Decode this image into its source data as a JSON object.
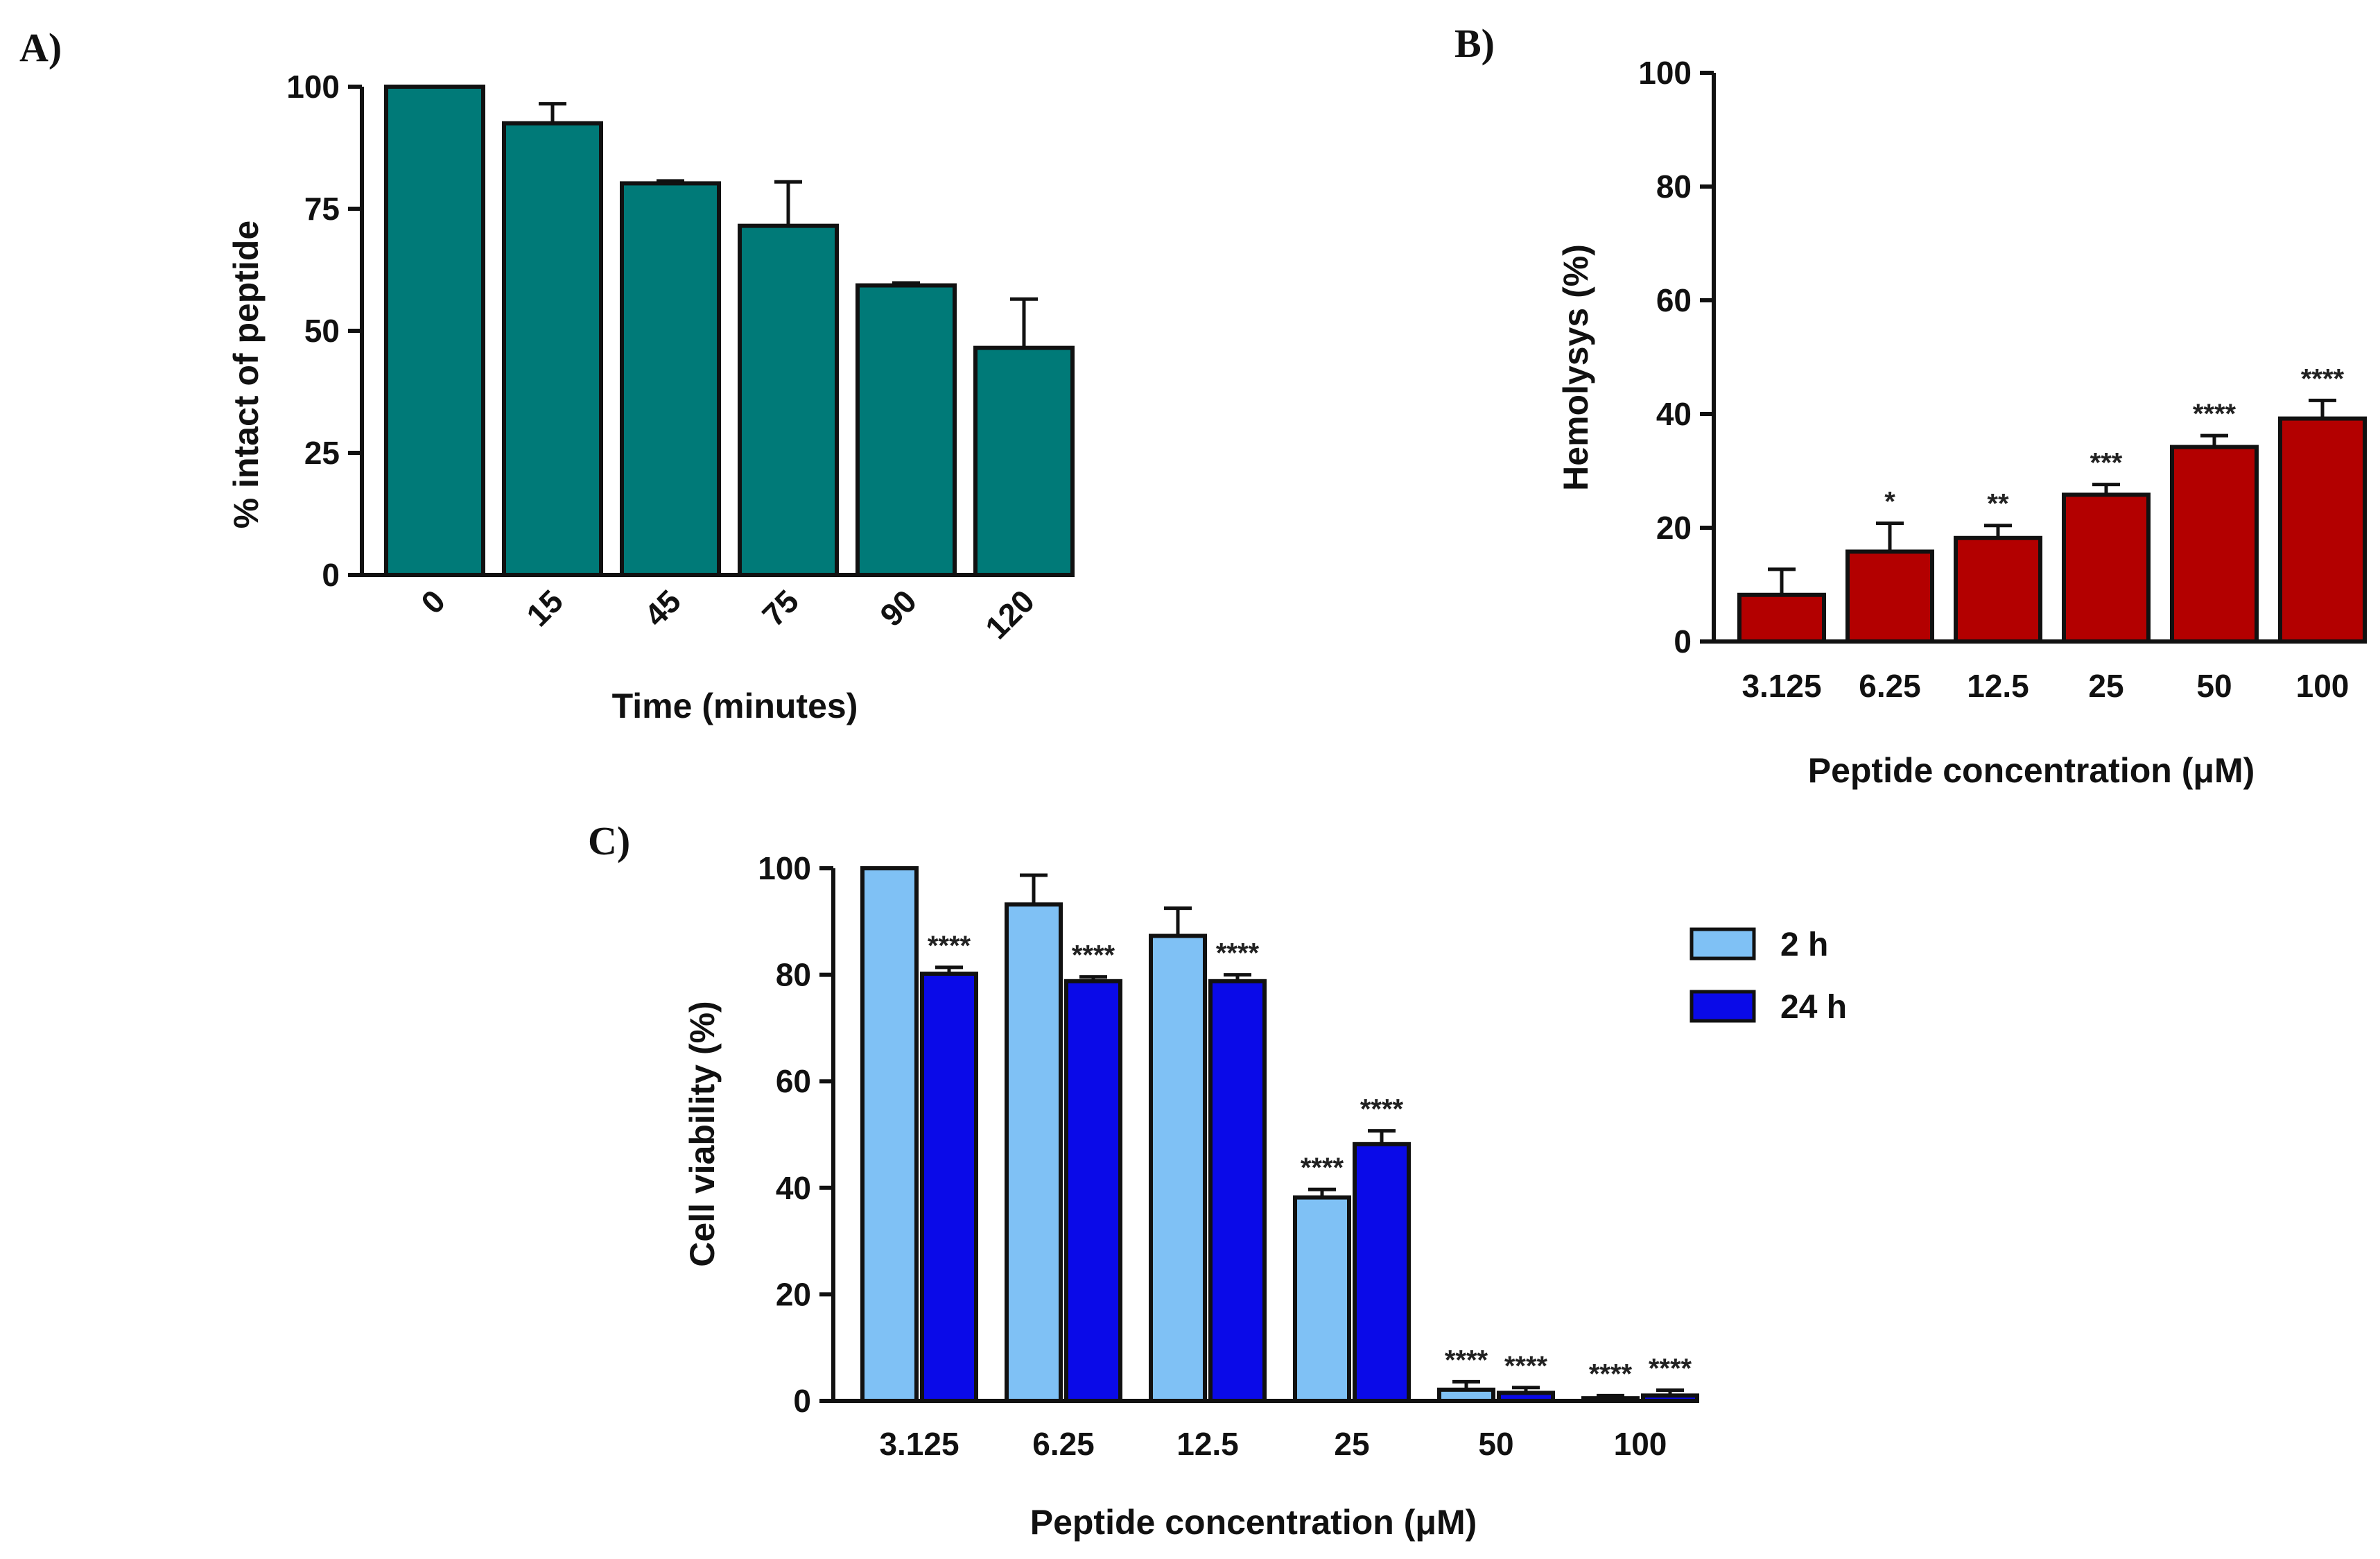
{
  "colors": {
    "teal": "#007A78",
    "red": "#B30000",
    "light_blue": "#7FC1F5",
    "blue": "#0A0AE8",
    "ink": "#111111"
  },
  "chart_data": [
    {
      "id": "A",
      "panel_label": "A)",
      "type": "bar",
      "title": "",
      "xlabel": "Time (minutes)",
      "ylabel": "% intact of peptide",
      "ylim": [
        0,
        100
      ],
      "yticks": [
        "0",
        "25",
        "50",
        "75",
        "100"
      ],
      "categories": [
        "0",
        "15",
        "45",
        "75",
        "90",
        "120"
      ],
      "series": [
        {
          "name": "",
          "color": "#007A78",
          "values": [
            100,
            92.5,
            80.2,
            71.5,
            59.3,
            46.5
          ],
          "errors": [
            0,
            4,
            0.5,
            9,
            0.5,
            10
          ]
        }
      ],
      "annotations": [
        "",
        "",
        "",
        "",
        "",
        ""
      ],
      "legend": "none"
    },
    {
      "id": "B",
      "panel_label": "B)",
      "type": "bar",
      "title": "",
      "xlabel": "Peptide concentration (μM)",
      "ylabel": "Hemolysys (%)",
      "ylim": [
        0,
        100
      ],
      "yticks": [
        "0",
        "20",
        "40",
        "60",
        "80",
        "100"
      ],
      "categories": [
        "3.125",
        "6.25",
        "12.5",
        "25",
        "50",
        "100"
      ],
      "series": [
        {
          "name": "",
          "color": "#B30000",
          "values": [
            8.2,
            15.8,
            18.2,
            25.8,
            34.2,
            39.2
          ],
          "errors": [
            4.5,
            5,
            2.2,
            1.8,
            2,
            3.2
          ]
        }
      ],
      "annotations": [
        "",
        "*",
        "**",
        "***",
        "****",
        "****"
      ],
      "legend": "none"
    },
    {
      "id": "C",
      "panel_label": "C)",
      "type": "bar",
      "title": "",
      "xlabel": "Peptide concentration (μM)",
      "ylabel": "Cell viability (%)",
      "ylim": [
        0,
        100
      ],
      "yticks": [
        "0",
        "20",
        "40",
        "60",
        "80",
        "100"
      ],
      "categories": [
        "3.125",
        "6.25",
        "12.5",
        "25",
        "50",
        "100"
      ],
      "series": [
        {
          "name": "2 h",
          "color": "#7FC1F5",
          "values": [
            100,
            93.2,
            87.3,
            38.2,
            2.1,
            0.5
          ],
          "errors": [
            0,
            5.5,
            5.2,
            1.5,
            1.5,
            0.5
          ],
          "annotations": [
            "",
            "",
            "",
            "****",
            "****",
            "****"
          ]
        },
        {
          "name": "24 h",
          "color": "#0A0AE8",
          "values": [
            80.2,
            78.8,
            78.8,
            48.2,
            1.5,
            1.0
          ],
          "errors": [
            1.2,
            0.8,
            1.2,
            2.5,
            1,
            1
          ],
          "annotations": [
            "****",
            "****",
            "****",
            "****",
            "****",
            "****"
          ]
        }
      ],
      "legend": "right"
    }
  ]
}
